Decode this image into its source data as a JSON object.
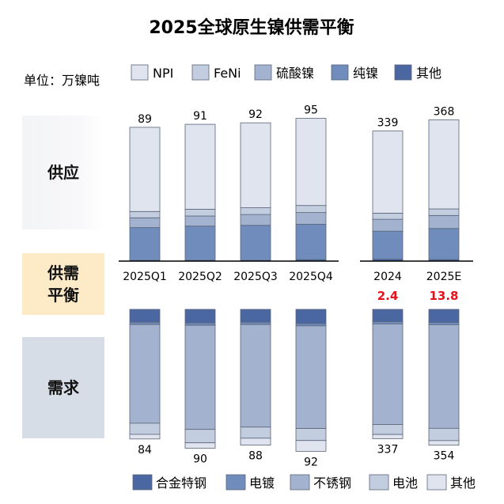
{
  "title": "2025全球原生镍供需平衡",
  "unit_label": "单位：万镍吨",
  "panels": {
    "supply": "供应",
    "balance_line1": "供需",
    "balance_line2": "平衡",
    "demand": "需求"
  },
  "colors": {
    "supply": [
      "#dfe4ee",
      "#c3cde0",
      "#a3b3cf",
      "#6f8cbc",
      "#4a67a1"
    ],
    "demand": [
      "#4a67a1",
      "#6f8cbc",
      "#a3b3cf",
      "#c3cde0",
      "#dfe4ee"
    ],
    "balance_text": "#e8101a",
    "stroke": "#5a6478"
  },
  "chart_data": [
    {
      "type": "bar",
      "stacked": true,
      "name": "supply",
      "categories": [
        "2025Q1",
        "2025Q2",
        "2025Q3",
        "2025Q4",
        "2024",
        "2025E"
      ],
      "legend": [
        "NPI",
        "FeNi",
        "硫酸镍",
        "纯镍",
        "其他"
      ],
      "totals": [
        89,
        91,
        92,
        95,
        339,
        368
      ],
      "series": [
        {
          "name": "NPI",
          "values": [
            56,
            56.5,
            56.5,
            58,
            214,
            232
          ]
        },
        {
          "name": "FeNi",
          "values": [
            4.2,
            4.5,
            4.5,
            4.7,
            16,
            17
          ]
        },
        {
          "name": "硫酸镍",
          "values": [
            6.5,
            6.7,
            7.2,
            7.8,
            31,
            34
          ]
        },
        {
          "name": "纯镍",
          "values": [
            21.8,
            22.8,
            23.3,
            23.5,
            73,
            81
          ]
        },
        {
          "name": "其他",
          "values": [
            0.5,
            0.5,
            0.5,
            1,
            5,
            4
          ]
        }
      ],
      "legend_placement": "top"
    },
    {
      "type": "bar",
      "stacked": true,
      "name": "demand",
      "categories": [
        "2025Q1",
        "2025Q2",
        "2025Q3",
        "2025Q4",
        "2024",
        "2025E"
      ],
      "legend": [
        "合金特钢",
        "电镀",
        "不锈钢",
        "电池",
        "其他"
      ],
      "totals": [
        84,
        90,
        88,
        92,
        337,
        354
      ],
      "series": [
        {
          "name": "合金特钢",
          "values": [
            8.3,
            8.8,
            8.3,
            9.2,
            32,
            34
          ]
        },
        {
          "name": "电镀",
          "values": [
            1.5,
            1.5,
            1.5,
            1.5,
            6,
            6
          ]
        },
        {
          "name": "不锈钢",
          "values": [
            64,
            67.5,
            66.5,
            66.5,
            262,
            270
          ]
        },
        {
          "name": "电池",
          "values": [
            7.2,
            8.7,
            7.2,
            7.8,
            26,
            32
          ]
        },
        {
          "name": "其他",
          "values": [
            3,
            3.5,
            4.5,
            7,
            11,
            12
          ]
        }
      ],
      "legend_placement": "bottom"
    },
    {
      "type": "table",
      "name": "balance",
      "categories": [
        "2024",
        "2025E"
      ],
      "values": [
        "2.4",
        "13.8"
      ]
    }
  ]
}
